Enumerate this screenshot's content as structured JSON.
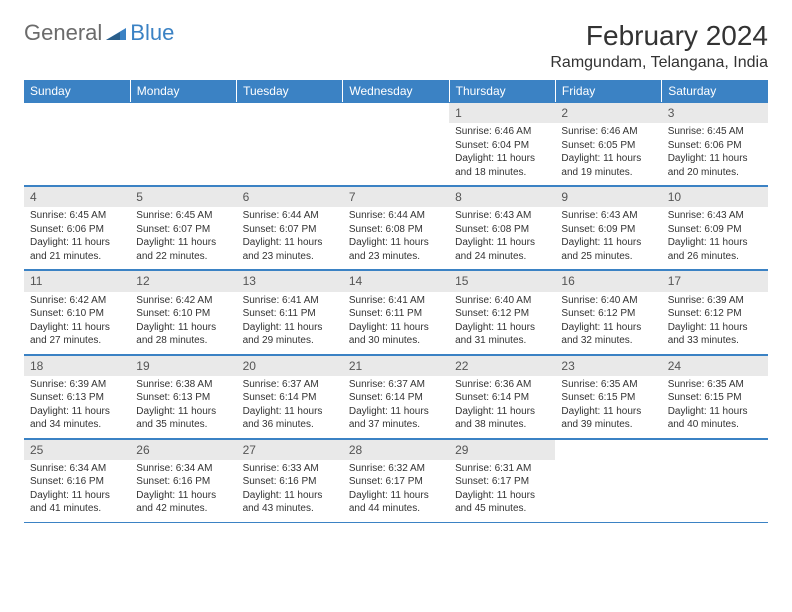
{
  "brand": {
    "general": "General",
    "blue": "Blue"
  },
  "colors": {
    "header_bg": "#3b82c4",
    "header_text": "#ffffff",
    "daynum_bg": "#e9e9e9",
    "border": "#3b82c4",
    "text": "#333333",
    "logo_gray": "#6b6b6b"
  },
  "title": "February 2024",
  "location": "Ramgundam, Telangana, India",
  "weekdays": [
    "Sunday",
    "Monday",
    "Tuesday",
    "Wednesday",
    "Thursday",
    "Friday",
    "Saturday"
  ],
  "labels": {
    "sunrise": "Sunrise:",
    "sunset": "Sunset:",
    "daylight": "Daylight:"
  },
  "weeks": [
    [
      null,
      null,
      null,
      null,
      {
        "n": "1",
        "sunrise": "6:46 AM",
        "sunset": "6:04 PM",
        "daylight": "11 hours and 18 minutes."
      },
      {
        "n": "2",
        "sunrise": "6:46 AM",
        "sunset": "6:05 PM",
        "daylight": "11 hours and 19 minutes."
      },
      {
        "n": "3",
        "sunrise": "6:45 AM",
        "sunset": "6:06 PM",
        "daylight": "11 hours and 20 minutes."
      }
    ],
    [
      {
        "n": "4",
        "sunrise": "6:45 AM",
        "sunset": "6:06 PM",
        "daylight": "11 hours and 21 minutes."
      },
      {
        "n": "5",
        "sunrise": "6:45 AM",
        "sunset": "6:07 PM",
        "daylight": "11 hours and 22 minutes."
      },
      {
        "n": "6",
        "sunrise": "6:44 AM",
        "sunset": "6:07 PM",
        "daylight": "11 hours and 23 minutes."
      },
      {
        "n": "7",
        "sunrise": "6:44 AM",
        "sunset": "6:08 PM",
        "daylight": "11 hours and 23 minutes."
      },
      {
        "n": "8",
        "sunrise": "6:43 AM",
        "sunset": "6:08 PM",
        "daylight": "11 hours and 24 minutes."
      },
      {
        "n": "9",
        "sunrise": "6:43 AM",
        "sunset": "6:09 PM",
        "daylight": "11 hours and 25 minutes."
      },
      {
        "n": "10",
        "sunrise": "6:43 AM",
        "sunset": "6:09 PM",
        "daylight": "11 hours and 26 minutes."
      }
    ],
    [
      {
        "n": "11",
        "sunrise": "6:42 AM",
        "sunset": "6:10 PM",
        "daylight": "11 hours and 27 minutes."
      },
      {
        "n": "12",
        "sunrise": "6:42 AM",
        "sunset": "6:10 PM",
        "daylight": "11 hours and 28 minutes."
      },
      {
        "n": "13",
        "sunrise": "6:41 AM",
        "sunset": "6:11 PM",
        "daylight": "11 hours and 29 minutes."
      },
      {
        "n": "14",
        "sunrise": "6:41 AM",
        "sunset": "6:11 PM",
        "daylight": "11 hours and 30 minutes."
      },
      {
        "n": "15",
        "sunrise": "6:40 AM",
        "sunset": "6:12 PM",
        "daylight": "11 hours and 31 minutes."
      },
      {
        "n": "16",
        "sunrise": "6:40 AM",
        "sunset": "6:12 PM",
        "daylight": "11 hours and 32 minutes."
      },
      {
        "n": "17",
        "sunrise": "6:39 AM",
        "sunset": "6:12 PM",
        "daylight": "11 hours and 33 minutes."
      }
    ],
    [
      {
        "n": "18",
        "sunrise": "6:39 AM",
        "sunset": "6:13 PM",
        "daylight": "11 hours and 34 minutes."
      },
      {
        "n": "19",
        "sunrise": "6:38 AM",
        "sunset": "6:13 PM",
        "daylight": "11 hours and 35 minutes."
      },
      {
        "n": "20",
        "sunrise": "6:37 AM",
        "sunset": "6:14 PM",
        "daylight": "11 hours and 36 minutes."
      },
      {
        "n": "21",
        "sunrise": "6:37 AM",
        "sunset": "6:14 PM",
        "daylight": "11 hours and 37 minutes."
      },
      {
        "n": "22",
        "sunrise": "6:36 AM",
        "sunset": "6:14 PM",
        "daylight": "11 hours and 38 minutes."
      },
      {
        "n": "23",
        "sunrise": "6:35 AM",
        "sunset": "6:15 PM",
        "daylight": "11 hours and 39 minutes."
      },
      {
        "n": "24",
        "sunrise": "6:35 AM",
        "sunset": "6:15 PM",
        "daylight": "11 hours and 40 minutes."
      }
    ],
    [
      {
        "n": "25",
        "sunrise": "6:34 AM",
        "sunset": "6:16 PM",
        "daylight": "11 hours and 41 minutes."
      },
      {
        "n": "26",
        "sunrise": "6:34 AM",
        "sunset": "6:16 PM",
        "daylight": "11 hours and 42 minutes."
      },
      {
        "n": "27",
        "sunrise": "6:33 AM",
        "sunset": "6:16 PM",
        "daylight": "11 hours and 43 minutes."
      },
      {
        "n": "28",
        "sunrise": "6:32 AM",
        "sunset": "6:17 PM",
        "daylight": "11 hours and 44 minutes."
      },
      {
        "n": "29",
        "sunrise": "6:31 AM",
        "sunset": "6:17 PM",
        "daylight": "11 hours and 45 minutes."
      },
      null,
      null
    ]
  ]
}
